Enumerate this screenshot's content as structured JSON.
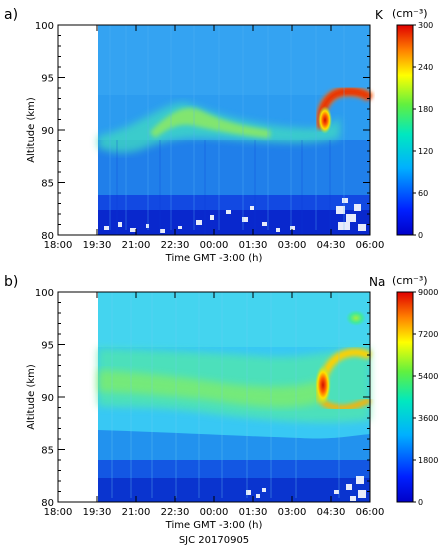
{
  "figure": {
    "caption": "SJC 20170905"
  },
  "chart_data": [
    {
      "type": "heatmap",
      "panel_label": "a)",
      "species": "K",
      "colorbar_unit": "(cm⁻³)",
      "xlabel": "Time GMT -3:00 (h)",
      "ylabel": "Altitude (km)",
      "x_ticks": [
        "18:00",
        "19:30",
        "21:00",
        "22:30",
        "00:00",
        "01:30",
        "03:00",
        "04:30",
        "06:00"
      ],
      "y_ticks": [
        80,
        85,
        90,
        95,
        100
      ],
      "ylim": [
        80,
        100
      ],
      "colorbar_ticks": [
        0,
        60,
        120,
        180,
        240,
        300
      ],
      "colorbar_range": [
        0,
        300
      ],
      "data_start": "19:30",
      "data_end": "06:00",
      "layers": [
        {
          "name": "main layer",
          "time_start": "22:00",
          "time_end": "04:00",
          "altitude_start": 90.5,
          "altitude_end": 89.2,
          "peak_density": 150
        },
        {
          "name": "enhancement",
          "time": "04:40",
          "altitude": 91.5,
          "peak_density": 280
        }
      ]
    },
    {
      "type": "heatmap",
      "panel_label": "b)",
      "species": "Na",
      "colorbar_unit": "(cm⁻³)",
      "xlabel": "Time GMT -3:00 (h)",
      "ylabel": "Altitude (km)",
      "x_ticks": [
        "18:00",
        "19:30",
        "21:00",
        "22:30",
        "00:00",
        "01:30",
        "03:00",
        "04:30",
        "06:00"
      ],
      "y_ticks": [
        80,
        85,
        90,
        95,
        100
      ],
      "ylim": [
        80,
        100
      ],
      "colorbar_ticks": [
        0,
        1800,
        3600,
        5400,
        7200,
        9000
      ],
      "colorbar_range": [
        0,
        9000
      ],
      "data_start": "19:30",
      "data_end": "06:00",
      "layers": [
        {
          "name": "main layer",
          "time_start": "19:30",
          "time_end": "03:00",
          "altitude_start": 90.5,
          "altitude_end": 90.0,
          "peak_density": 4500
        },
        {
          "name": "enhancement",
          "time": "04:00",
          "altitude": 90.5,
          "peak_density": 9000
        }
      ]
    }
  ]
}
